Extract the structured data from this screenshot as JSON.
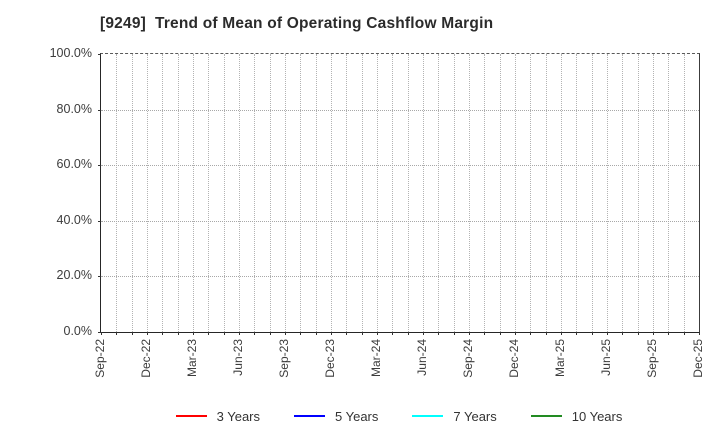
{
  "window": {
    "background": "#ffffff"
  },
  "chart_title": "[9249]  Trend of Mean of Operating Cashflow Margin",
  "chart_data": {
    "type": "line",
    "title": "[9249]  Trend of Mean of Operating Cashflow Margin",
    "title_align": "left",
    "x_tick_labels": [
      "Sep-22",
      "Dec-22",
      "Mar-23",
      "Jun-23",
      "Sep-23",
      "Dec-23",
      "Mar-24",
      "Jun-24",
      "Sep-24",
      "Dec-24",
      "Mar-25",
      "Jun-25",
      "Sep-25",
      "Dec-25"
    ],
    "x_months_total": 40,
    "x_label_step_months": 3,
    "y_tick_labels": [
      "0.0%",
      "20.0%",
      "40.0%",
      "60.0%",
      "80.0%",
      "100.0%"
    ],
    "ylim": [
      0,
      100
    ],
    "xlabel": "",
    "ylabel": "",
    "grid": true,
    "grid_style": "dotted",
    "grid_color": "#b3b3b3",
    "spine_color": "#262626",
    "legend_position": "bottom",
    "series": [
      {
        "name": "3 Years",
        "color": "#ff0000",
        "values": []
      },
      {
        "name": "5 Years",
        "color": "#0000ff",
        "values": []
      },
      {
        "name": "7 Years",
        "color": "#00ffff",
        "values": []
      },
      {
        "name": "10 Years",
        "color": "#228b22",
        "values": []
      }
    ],
    "note": "no data points plotted; plot area shows grid only"
  }
}
